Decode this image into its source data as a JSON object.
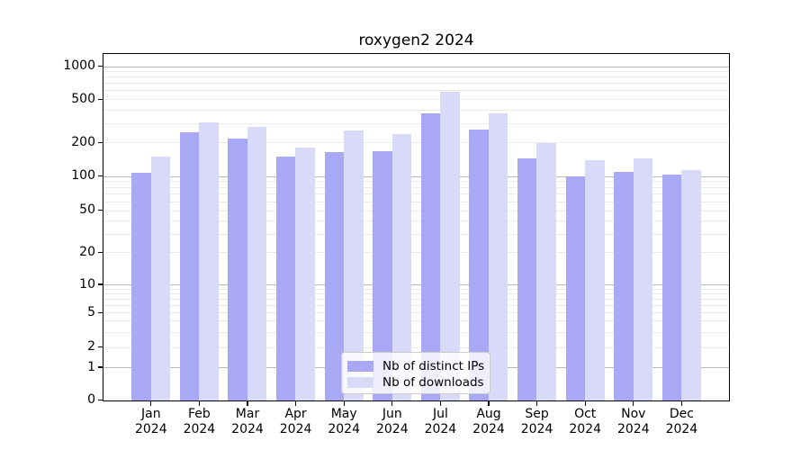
{
  "chart_data": {
    "type": "bar",
    "title": "roxygen2 2024",
    "categories": [
      "Jan",
      "Feb",
      "Mar",
      "Apr",
      "May",
      "Jun",
      "Jul",
      "Aug",
      "Sep",
      "Oct",
      "Nov",
      "Dec"
    ],
    "category_year": "2024",
    "series": [
      {
        "name": "Nb of distinct IPs",
        "color": "#a8a8f5",
        "values": [
          107,
          250,
          220,
          150,
          165,
          170,
          370,
          265,
          145,
          100,
          110,
          104
        ]
      },
      {
        "name": "Nb of downloads",
        "color": "#d9d9f8",
        "values": [
          150,
          310,
          280,
          180,
          260,
          240,
          590,
          375,
          200,
          140,
          145,
          115
        ]
      }
    ],
    "ylabel": "",
    "xlabel": "",
    "ytick_labels": [
      "0",
      "1",
      "2",
      "5",
      "10",
      "20",
      "50",
      "100",
      "200",
      "500",
      "1000"
    ],
    "yticks": [
      0,
      1,
      2,
      5,
      10,
      20,
      50,
      100,
      200,
      500,
      1000
    ],
    "yscale": "log-like with zero baseline",
    "ylim": [
      0,
      1350
    ],
    "grid": "horizontal minor and major gridlines",
    "legend_position": "lower center"
  },
  "colors": {
    "major_grid": "#b9b9b9",
    "minor_grid": "#ebebeb",
    "spine": "#000000",
    "legend_border": "#cccccc",
    "background": "#ffffff"
  }
}
